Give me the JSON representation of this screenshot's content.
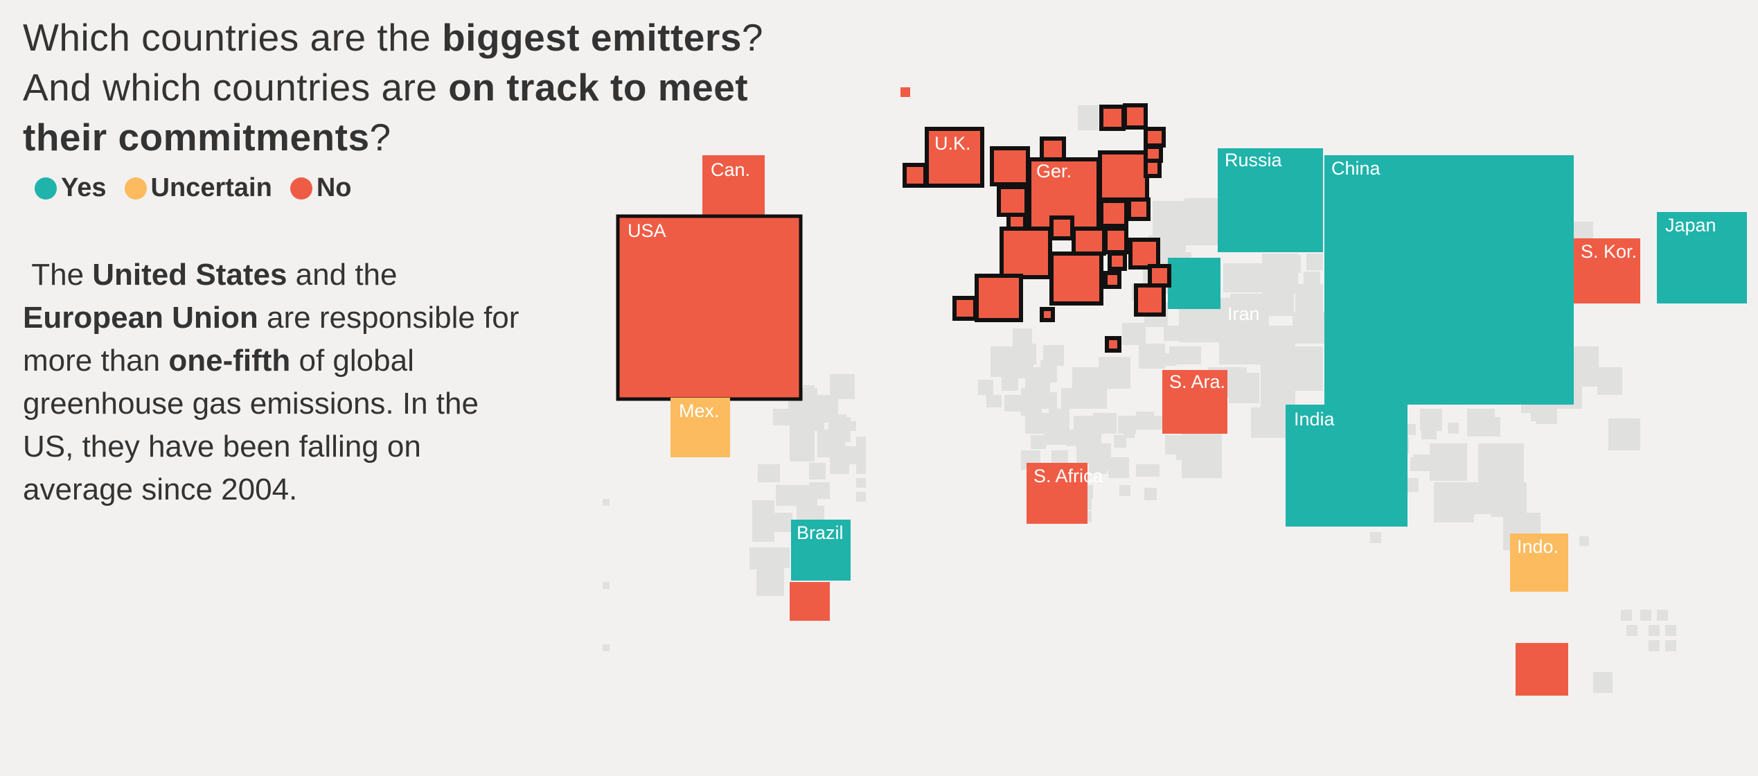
{
  "title": {
    "p1": "Which countries are the ",
    "b1": "biggest emitters",
    "p2": "? And which countries are ",
    "b2": "on track to meet their commitments",
    "p3": "?"
  },
  "legend": {
    "items": [
      {
        "label": "Yes",
        "color": "#1fb3aa"
      },
      {
        "label": "Uncertain",
        "color": "#fcbb5e"
      },
      {
        "label": "No",
        "color": "#ef5c45"
      }
    ]
  },
  "body": {
    "t1": "The ",
    "b1": "United States",
    "t2": " and the ",
    "b2": "European Union",
    "t3": " are responsible for more than ",
    "b3": "one-fifth",
    "t4": " of global greenhouse gas emissions. In the US, they have been falling on average since 2004."
  },
  "colors": {
    "yes": "#1fb3aa",
    "uncertain": "#fcbb5e",
    "no": "#ef5c45",
    "no_data": "#e0e0df",
    "eu_outline": "#111111"
  },
  "countries": [
    {
      "label": "Can.",
      "status": "no"
    },
    {
      "label": "USA",
      "status": "no",
      "eu_style_outline": true
    },
    {
      "label": "Mex.",
      "status": "uncertain"
    },
    {
      "label": "Brazil",
      "status": "yes"
    },
    {
      "label": "U.K.",
      "status": "no",
      "eu": true
    },
    {
      "label": "Ger.",
      "status": "no",
      "eu": true
    },
    {
      "label": "Russia",
      "status": "yes"
    },
    {
      "label": "China",
      "status": "yes"
    },
    {
      "label": "Japan",
      "status": "yes"
    },
    {
      "label": "S. Kor.",
      "status": "no"
    },
    {
      "label": "Iran",
      "status": "no_data"
    },
    {
      "label": "S. Ara.",
      "status": "no"
    },
    {
      "label": "India",
      "status": "yes"
    },
    {
      "label": "S. Africa",
      "status": "no"
    },
    {
      "label": "Indo.",
      "status": "uncertain"
    }
  ]
}
